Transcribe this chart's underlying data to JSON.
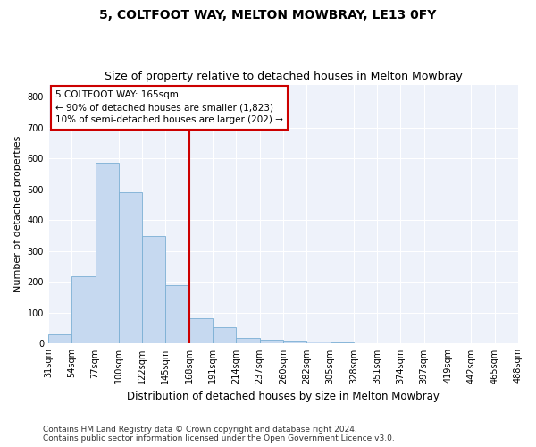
{
  "title1": "5, COLTFOOT WAY, MELTON MOWBRAY, LE13 0FY",
  "title2": "Size of property relative to detached houses in Melton Mowbray",
  "xlabel": "Distribution of detached houses by size in Melton Mowbray",
  "ylabel": "Number of detached properties",
  "bar_values": [
    30,
    218,
    588,
    490,
    350,
    190,
    83,
    52,
    18,
    13,
    10,
    6,
    4,
    1,
    0,
    0,
    0,
    0,
    0,
    0
  ],
  "bin_labels": [
    "31sqm",
    "54sqm",
    "77sqm",
    "100sqm",
    "122sqm",
    "145sqm",
    "168sqm",
    "191sqm",
    "214sqm",
    "237sqm",
    "260sqm",
    "282sqm",
    "305sqm",
    "328sqm",
    "351sqm",
    "374sqm",
    "397sqm",
    "419sqm",
    "442sqm",
    "465sqm",
    "488sqm"
  ],
  "bar_color": "#c6d9f0",
  "bar_edge_color": "#7bafd4",
  "vline_color": "#cc0000",
  "annotation_line1": "5 COLTFOOT WAY: 165sqm",
  "annotation_line2": "← 90% of detached houses are smaller (1,823)",
  "annotation_line3": "10% of semi-detached houses are larger (202) →",
  "annotation_box_color": "#cc0000",
  "ylim": [
    0,
    840
  ],
  "yticks": [
    0,
    100,
    200,
    300,
    400,
    500,
    600,
    700,
    800
  ],
  "footer1": "Contains HM Land Registry data © Crown copyright and database right 2024.",
  "footer2": "Contains public sector information licensed under the Open Government Licence v3.0.",
  "bg_color": "#ffffff",
  "plot_bg_color": "#eef2fa",
  "title1_fontsize": 10,
  "title2_fontsize": 9,
  "xlabel_fontsize": 8.5,
  "ylabel_fontsize": 8,
  "annotation_fontsize": 7.5,
  "footer_fontsize": 6.5,
  "grid_color": "#ffffff",
  "tick_fontsize": 7
}
